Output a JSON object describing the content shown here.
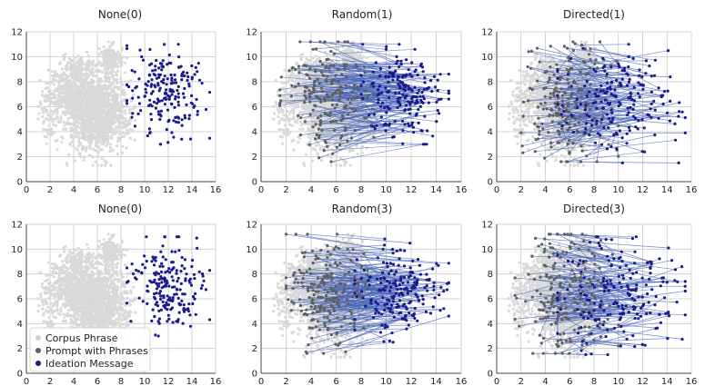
{
  "colors": {
    "corpus": "#d9d9d9",
    "prompt": "#5f5f5f",
    "ideation": "#1b1b8c",
    "line": "#4a66b8",
    "grid": "#c8c8c8",
    "axis": "#444444"
  },
  "legend": {
    "items": [
      {
        "label": "Corpus Phrase",
        "color": "#d0d0d0"
      },
      {
        "label": "Prompt with Phrases",
        "color": "#606060"
      },
      {
        "label": "Ideation Message",
        "color": "#1b1b8c"
      }
    ],
    "placement": "lower-left of bottom-left panel"
  },
  "chart_data": [
    {
      "type": "scatter",
      "title": "None(0)",
      "xlim": [
        0,
        16
      ],
      "ylim": [
        0,
        12
      ],
      "xticks": [
        "0",
        "2",
        "4",
        "6",
        "8",
        "10",
        "12",
        "14",
        "16"
      ],
      "yticks": [
        "0",
        "2",
        "4",
        "6",
        "8",
        "10",
        "12"
      ],
      "grid": true,
      "corpus_cloud": {
        "x_range": [
          1,
          9
        ],
        "y_range": [
          1.5,
          11
        ]
      },
      "prompt_x_range": null,
      "ideation_x_range": [
        8.5,
        15.5
      ],
      "ideation_y_range": [
        3,
        11
      ],
      "ideation_count": 200,
      "links": 0
    },
    {
      "type": "scatter",
      "title": "Random(1)",
      "xlim": [
        0,
        16
      ],
      "ylim": [
        0,
        12
      ],
      "xticks": [
        "0",
        "2",
        "4",
        "6",
        "8",
        "10",
        "12",
        "14",
        "16"
      ],
      "yticks": [
        "0",
        "2",
        "4",
        "6",
        "8",
        "10",
        "12"
      ],
      "grid": true,
      "corpus_cloud": {
        "x_range": [
          1,
          9
        ],
        "y_range": [
          1.5,
          11
        ]
      },
      "prompt_x_range": [
        1.5,
        9
      ],
      "ideation_x_range": [
        8,
        15
      ],
      "ideation_y_range": [
        3,
        11
      ],
      "ideation_count": 200,
      "links": 200
    },
    {
      "type": "scatter",
      "title": "Directed(1)",
      "xlim": [
        0,
        16
      ],
      "ylim": [
        0,
        12
      ],
      "xticks": [
        "0",
        "2",
        "4",
        "6",
        "8",
        "10",
        "12",
        "14",
        "16"
      ],
      "yticks": [
        "0",
        "2",
        "4",
        "6",
        "8",
        "10",
        "12"
      ],
      "grid": true,
      "corpus_cloud": {
        "x_range": [
          1,
          9
        ],
        "y_range": [
          1.5,
          11
        ]
      },
      "prompt_x_range": [
        1.5,
        10
      ],
      "ideation_x_range": [
        5,
        15.5
      ],
      "ideation_y_range": [
        1.5,
        11
      ],
      "ideation_count": 200,
      "links": 200
    },
    {
      "type": "scatter",
      "title": "None(0)",
      "xlim": [
        0,
        16
      ],
      "ylim": [
        0,
        12
      ],
      "xticks": [
        "0",
        "2",
        "4",
        "6",
        "8",
        "10",
        "12",
        "14",
        "16"
      ],
      "yticks": [
        "0",
        "2",
        "4",
        "6",
        "8",
        "10",
        "12"
      ],
      "grid": true,
      "corpus_cloud": {
        "x_range": [
          1,
          9
        ],
        "y_range": [
          1.5,
          11
        ]
      },
      "prompt_x_range": null,
      "ideation_x_range": [
        8.5,
        15.5
      ],
      "ideation_y_range": [
        3,
        11
      ],
      "ideation_count": 200,
      "links": 0
    },
    {
      "type": "scatter",
      "title": "Random(3)",
      "xlim": [
        0,
        16
      ],
      "ylim": [
        0,
        12
      ],
      "xticks": [
        "0",
        "2",
        "4",
        "6",
        "8",
        "10",
        "12",
        "14",
        "16"
      ],
      "yticks": [
        "0",
        "2",
        "4",
        "6",
        "8",
        "10",
        "12"
      ],
      "grid": true,
      "corpus_cloud": {
        "x_range": [
          1,
          9
        ],
        "y_range": [
          1.5,
          11
        ]
      },
      "prompt_x_range": [
        2,
        8.5
      ],
      "ideation_x_range": [
        7.5,
        15
      ],
      "ideation_y_range": [
        2.5,
        11
      ],
      "ideation_count": 200,
      "links": 200
    },
    {
      "type": "scatter",
      "title": "Directed(3)",
      "xlim": [
        0,
        16
      ],
      "ylim": [
        0,
        12
      ],
      "xticks": [
        "0",
        "2",
        "4",
        "6",
        "8",
        "10",
        "12",
        "14",
        "16"
      ],
      "yticks": [
        "0",
        "2",
        "4",
        "6",
        "8",
        "10",
        "12"
      ],
      "grid": true,
      "corpus_cloud": {
        "x_range": [
          1,
          9
        ],
        "y_range": [
          1.5,
          11
        ]
      },
      "prompt_x_range": [
        1.5,
        10
      ],
      "ideation_x_range": [
        5,
        15.5
      ],
      "ideation_y_range": [
        1.5,
        11
      ],
      "ideation_count": 200,
      "links": 200
    }
  ]
}
